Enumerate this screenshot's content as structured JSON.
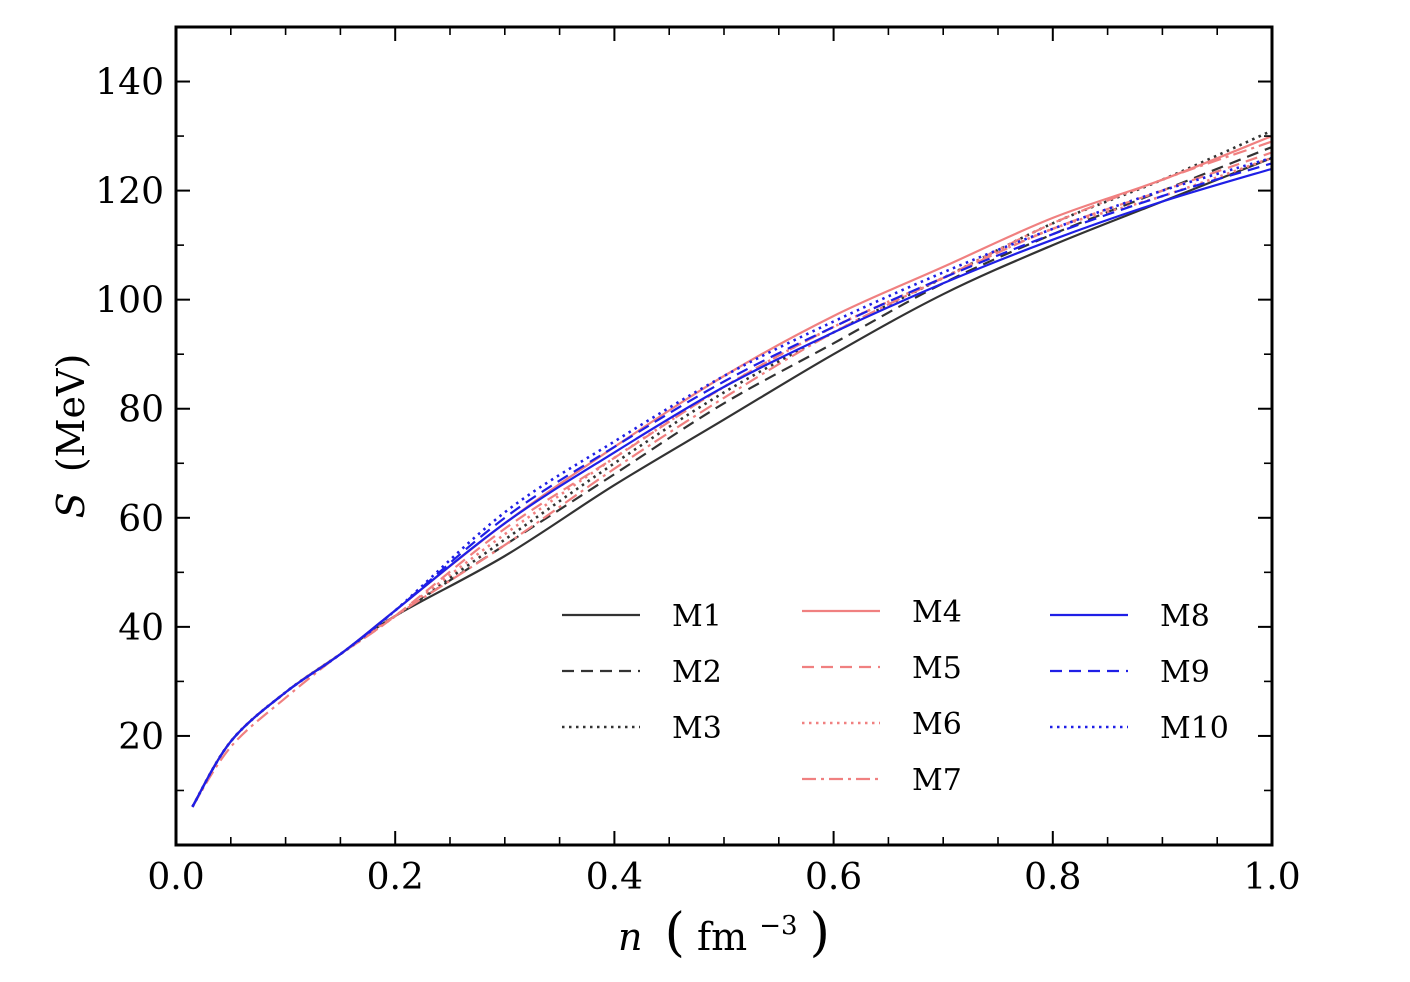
{
  "chart_data": {
    "type": "line",
    "title": "",
    "xlabel_var": "n",
    "xlabel_unit": "fm",
    "xlabel_exp": "−3",
    "ylabel_var": "S",
    "ylabel_unit": "(MeV)",
    "xlim": [
      0.0,
      1.0
    ],
    "ylim": [
      0,
      150
    ],
    "x_ticks": [
      0.0,
      0.2,
      0.4,
      0.6,
      0.8,
      1.0
    ],
    "x_tick_labels": [
      "0.0",
      "0.2",
      "0.4",
      "0.6",
      "0.8",
      "1.0"
    ],
    "y_ticks": [
      20,
      40,
      60,
      80,
      100,
      120,
      140
    ],
    "y_tick_labels": [
      "20",
      "40",
      "60",
      "80",
      "100",
      "120",
      "140"
    ],
    "grid": false,
    "legend": "lower-right",
    "x": [
      0.015,
      0.05,
      0.1,
      0.15,
      0.2,
      0.3,
      0.4,
      0.5,
      0.6,
      0.7,
      0.8,
      0.9,
      1.0
    ],
    "series": [
      {
        "name": "M1",
        "color": "#333333",
        "dash": "solid",
        "values": [
          7,
          19,
          28,
          35,
          42,
          53,
          66,
          78,
          90,
          101,
          110,
          118,
          126
        ]
      },
      {
        "name": "M2",
        "color": "#333333",
        "dash": "dashed",
        "values": [
          7,
          19,
          28,
          35,
          42,
          55,
          68,
          81,
          92,
          103,
          112,
          120,
          128
        ]
      },
      {
        "name": "M3",
        "color": "#333333",
        "dash": "dotted",
        "values": [
          7,
          19,
          28,
          35,
          42,
          56,
          70,
          83,
          94,
          104,
          114,
          122,
          131
        ]
      },
      {
        "name": "M4",
        "color": "#f08080",
        "dash": "solid",
        "values": [
          7,
          19,
          28,
          35,
          43,
          59,
          73,
          86,
          97,
          106,
          115,
          122,
          130
        ]
      },
      {
        "name": "M5",
        "color": "#f08080",
        "dash": "dashed",
        "values": [
          7,
          19,
          28,
          35,
          42,
          58,
          71,
          84,
          95,
          104,
          113,
          120,
          127
        ]
      },
      {
        "name": "M6",
        "color": "#f08080",
        "dash": "dotted",
        "values": [
          7,
          19,
          28,
          35,
          42,
          57,
          71,
          84,
          95,
          104,
          113,
          119,
          126
        ]
      },
      {
        "name": "M7",
        "color": "#f08080",
        "dash": "dashdot",
        "values": [
          7,
          18,
          27,
          35,
          42,
          55,
          69,
          82,
          94,
          104,
          114,
          122,
          129
        ]
      },
      {
        "name": "M8",
        "color": "#1f1fe6",
        "dash": "solid",
        "values": [
          7,
          19,
          28,
          35,
          43,
          59,
          72,
          84,
          94,
          103,
          111,
          118,
          124
        ]
      },
      {
        "name": "M9",
        "color": "#1f1fe6",
        "dash": "dashed",
        "values": [
          7,
          19,
          28,
          35,
          43,
          60,
          73,
          85,
          95,
          104,
          112,
          119,
          125
        ]
      },
      {
        "name": "M10",
        "color": "#1f1fe6",
        "dash": "dotted",
        "values": [
          7,
          19,
          28,
          35,
          43,
          61,
          74,
          86,
          96,
          105,
          113,
          120,
          126
        ]
      }
    ]
  }
}
